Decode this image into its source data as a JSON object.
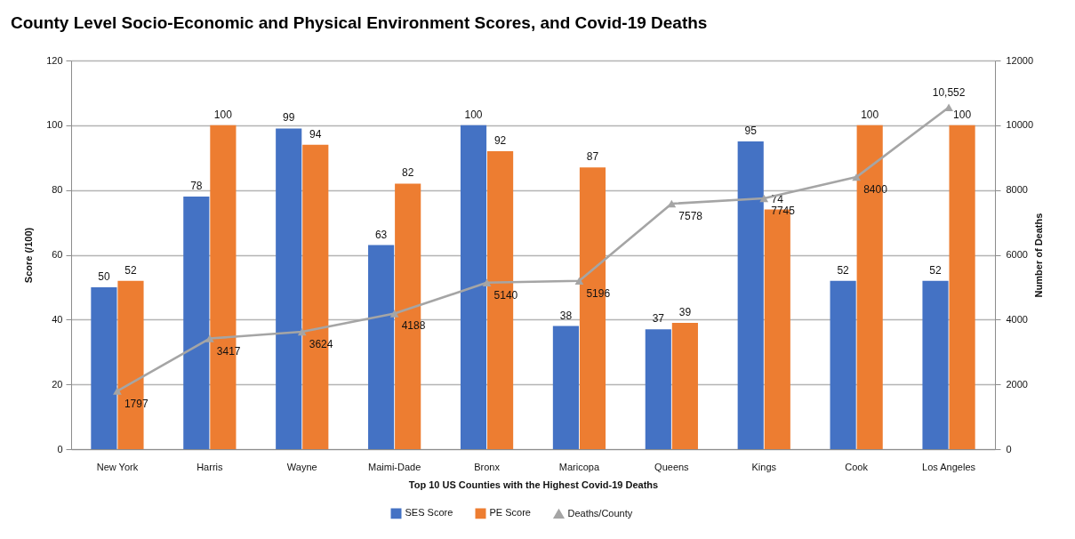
{
  "chart_data": {
    "type": "bar",
    "title": "County Level Socio-Economic and Physical Environment Scores, and Covid-19 Deaths",
    "xlabel": "Top 10 US Counties with the Highest Covid-19 Deaths",
    "ylabel": "Score (/100)",
    "y2label": "Number of Deaths",
    "categories": [
      "New York",
      "Harris",
      "Wayne",
      "Maimi-Dade",
      "Bronx",
      "Maricopa",
      "Queens",
      "Kings",
      "Cook",
      "Los Angeles"
    ],
    "series": [
      {
        "name": "SES Score",
        "color": "#4472c4",
        "values": [
          50,
          78,
          99,
          63,
          100,
          38,
          37,
          95,
          52,
          52
        ]
      },
      {
        "name": "PE Score",
        "color": "#ed7d31",
        "values": [
          52,
          100,
          94,
          82,
          92,
          87,
          39,
          74,
          100,
          100
        ]
      },
      {
        "name": "Deaths/County",
        "type": "line",
        "axis": "y2",
        "color": "#a5a5a5",
        "values": [
          1797,
          3417,
          3624,
          4188,
          5140,
          5196,
          7578,
          7745,
          8400,
          10552
        ],
        "value_labels": [
          "1797",
          "3417",
          "3624",
          "4188",
          "5140",
          "5196",
          "7578",
          "7745",
          "8400",
          "10,552"
        ]
      }
    ],
    "ylim": [
      0,
      120
    ],
    "yticks": [
      0,
      20,
      40,
      60,
      80,
      100,
      120
    ],
    "y2lim": [
      0,
      12000
    ],
    "y2ticks": [
      0,
      2000,
      4000,
      6000,
      8000,
      10000,
      12000
    ],
    "grid": "y",
    "legend": "bottom",
    "marker": "triangle",
    "line_style": "solid",
    "data_labels": true
  }
}
